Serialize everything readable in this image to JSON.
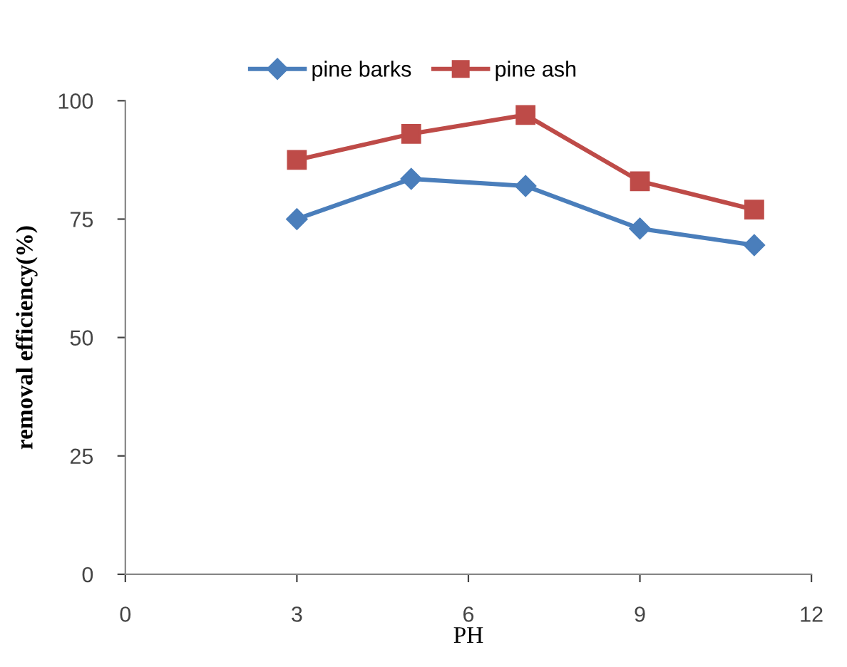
{
  "chart_data": {
    "type": "line",
    "xlabel": "PH",
    "ylabel": "removal efficiency(%)",
    "x": [
      3,
      5,
      7,
      9,
      11
    ],
    "series": [
      {
        "name": "pine barks",
        "color": "#4a7ebb",
        "values": [
          75,
          83.5,
          82,
          73,
          69.5
        ],
        "marker": "diamond"
      },
      {
        "name": "pine ash",
        "color": "#be4b48",
        "values": [
          87.5,
          93,
          97,
          83,
          77
        ],
        "marker": "square"
      }
    ],
    "xlim": [
      0,
      12
    ],
    "xticks": [
      0,
      3,
      6,
      9,
      12
    ],
    "ylim": [
      0,
      100
    ],
    "yticks": [
      0,
      25,
      50,
      75,
      100
    ],
    "grid": false,
    "legend": "top",
    "line_style": "solid"
  }
}
